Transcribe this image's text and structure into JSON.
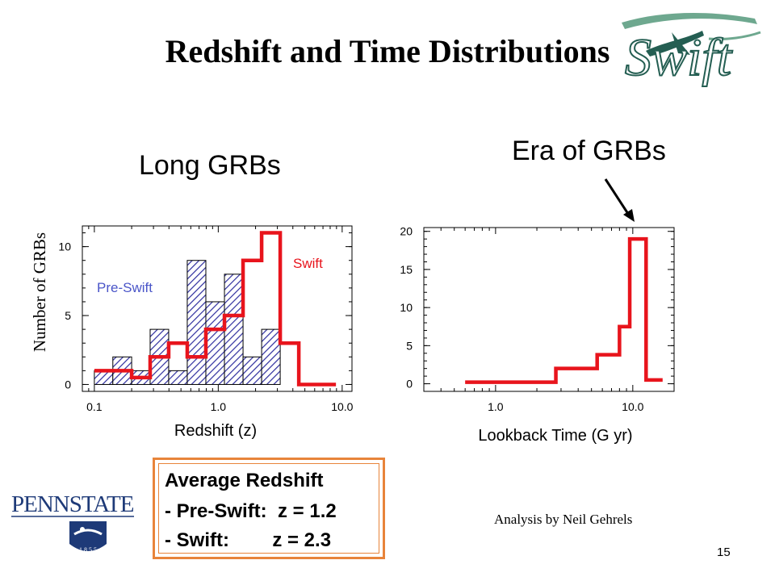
{
  "slide": {
    "title": "Redshift and Time Distributions",
    "left_heading": "Long GRBs",
    "right_heading": "Era of GRBs",
    "logo_text": "Swift",
    "institution_logo_text": "PENNSTATE",
    "institution_logo_year": "1 8 5 5",
    "credit": "Analysis by Neil Gehrels",
    "page_number": "15",
    "summary_box": {
      "line1": "Average Redshift",
      "line2": "- Pre-Swift:  z = 1.2",
      "line3": "- Swift:        z = 2.3"
    }
  },
  "colors": {
    "swift": "#e8141c",
    "pre_swift": "#2d2d9e",
    "pre_swift_label": "#4a55c8",
    "box_border": "#e8843a"
  },
  "chart_data": [
    {
      "type": "bar",
      "xscale": "log",
      "xlabel": "Redshift (z)",
      "ylabel": "Number of GRBs",
      "xlim": [
        0.08,
        12
      ],
      "ylim": [
        -0.5,
        11.5
      ],
      "xticks": [
        {
          "v": 0.1,
          "label": "0.1"
        },
        {
          "v": 1.0,
          "label": "1.0"
        },
        {
          "v": 10.0,
          "label": "10.0"
        }
      ],
      "yticks": [
        {
          "v": 0,
          "label": "0"
        },
        {
          "v": 5,
          "label": "5"
        },
        {
          "v": 10,
          "label": "10"
        }
      ],
      "series": [
        {
          "name": "Pre-Swift",
          "style": "hatched-histogram",
          "bin_edges": [
            0.1,
            0.141,
            0.2,
            0.282,
            0.398,
            0.562,
            0.794,
            1.122,
            1.585,
            2.239,
            3.162,
            4.467
          ],
          "values": [
            1,
            2,
            1,
            4,
            1,
            9,
            6,
            8,
            2,
            4,
            0
          ]
        },
        {
          "name": "Swift",
          "style": "step",
          "bin_edges": [
            0.1,
            0.141,
            0.2,
            0.282,
            0.398,
            0.562,
            0.794,
            1.122,
            1.585,
            2.239,
            3.162,
            4.467,
            6.31,
            8.91
          ],
          "values": [
            1,
            1,
            0.5,
            2,
            3,
            2,
            4,
            5,
            9,
            11,
            3,
            0,
            0
          ]
        }
      ]
    },
    {
      "type": "line",
      "xscale": "log",
      "xlabel": "Lookback Time (G yr)",
      "ylabel": "",
      "xlim": [
        0.3,
        20
      ],
      "ylim": [
        -1,
        20.5
      ],
      "xticks": [
        {
          "v": 1.0,
          "label": "1.0"
        },
        {
          "v": 10.0,
          "label": "10.0"
        }
      ],
      "yticks": [
        {
          "v": 0,
          "label": "0"
        },
        {
          "v": 5,
          "label": "5"
        },
        {
          "v": 10,
          "label": "10"
        },
        {
          "v": 15,
          "label": "15"
        },
        {
          "v": 20,
          "label": "20"
        }
      ],
      "series": [
        {
          "name": "Swift",
          "style": "step",
          "bin_edges": [
            0.6,
            2.75,
            5.5,
            8.0,
            9.5,
            12.5,
            16.5
          ],
          "values": [
            0.2,
            2,
            3.8,
            7.5,
            19,
            0.5
          ]
        }
      ]
    }
  ]
}
